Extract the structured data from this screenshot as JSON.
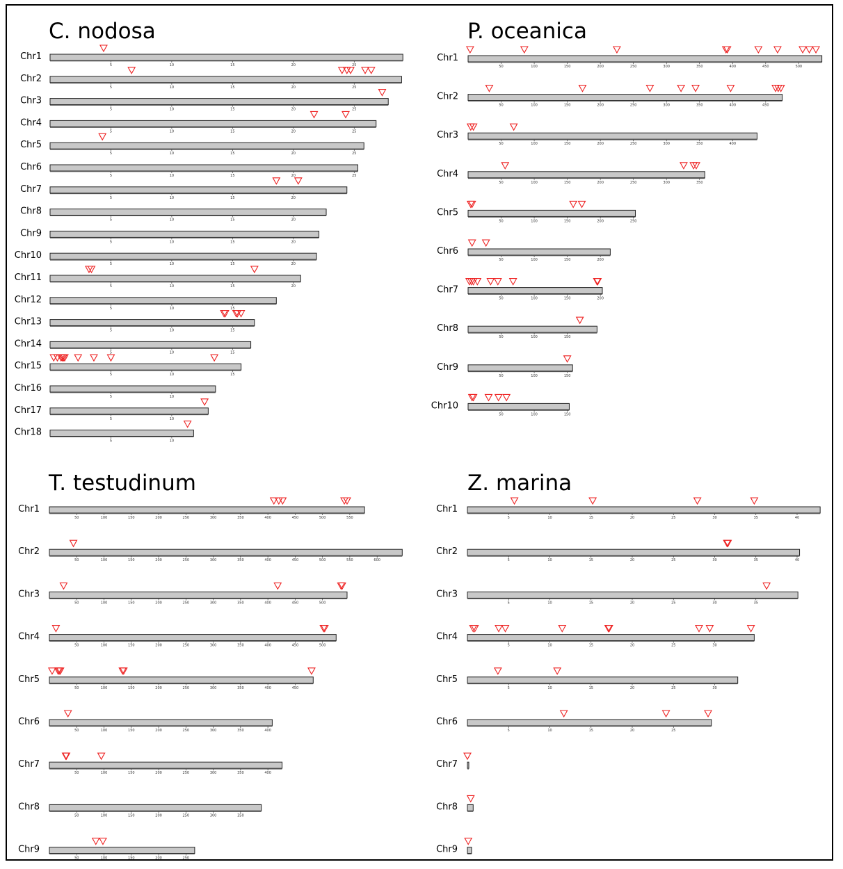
{
  "panels": [
    {
      "id": "c-nodosa",
      "title": "C. nodosa",
      "chromosomes": [
        {
          "name": "Chr1",
          "length": 29.0,
          "ticks": [
            5,
            10,
            15,
            20,
            25
          ],
          "markers": [
            4.4
          ]
        },
        {
          "name": "Chr2",
          "length": 28.9,
          "ticks": [
            5,
            10,
            15,
            20,
            25
          ],
          "markers": [
            6.7,
            24.0,
            24.4,
            24.7,
            25.9,
            26.4
          ]
        },
        {
          "name": "Chr3",
          "length": 27.8,
          "ticks": [
            5,
            10,
            15,
            20,
            25
          ],
          "markers": [
            27.3
          ]
        },
        {
          "name": "Chr4",
          "length": 26.8,
          "ticks": [
            5,
            10,
            15,
            20,
            25
          ],
          "markers": [
            21.7,
            24.3
          ]
        },
        {
          "name": "Chr5",
          "length": 25.8,
          "ticks": [
            5,
            10,
            15,
            20,
            25
          ],
          "markers": [
            4.3
          ]
        },
        {
          "name": "Chr6",
          "length": 25.3,
          "ticks": [
            5,
            10,
            15,
            20,
            25
          ],
          "markers": []
        },
        {
          "name": "Chr7",
          "length": 24.4,
          "ticks": [
            5,
            10,
            15,
            20
          ],
          "markers": [
            18.6,
            20.4
          ]
        },
        {
          "name": "Chr8",
          "length": 22.7,
          "ticks": [
            5,
            10,
            15,
            20
          ],
          "markers": []
        },
        {
          "name": "Chr9",
          "length": 22.1,
          "ticks": [
            5,
            10,
            15,
            20
          ],
          "markers": []
        },
        {
          "name": "Chr10",
          "length": 21.9,
          "ticks": [
            5,
            10,
            15,
            20
          ],
          "markers": []
        },
        {
          "name": "Chr11",
          "length": 20.6,
          "ticks": [
            5,
            10,
            15,
            20
          ],
          "markers": [
            3.2,
            3.4,
            16.8
          ]
        },
        {
          "name": "Chr12",
          "length": 18.6,
          "ticks": [
            5,
            10,
            15
          ],
          "markers": []
        },
        {
          "name": "Chr13",
          "length": 16.8,
          "ticks": [
            5,
            10,
            15
          ],
          "markers": [
            14.3,
            14.4,
            15.3,
            15.4,
            15.7
          ]
        },
        {
          "name": "Chr14",
          "length": 16.5,
          "ticks": [
            5,
            10,
            15
          ],
          "markers": []
        },
        {
          "name": "Chr15",
          "length": 15.7,
          "ticks": [
            5,
            10,
            15
          ],
          "markers": [
            0.3,
            0.6,
            0.9,
            1.0,
            1.1,
            1.2,
            2.3,
            3.6,
            5.0,
            13.5
          ]
        },
        {
          "name": "Chr16",
          "length": 13.6,
          "ticks": [
            5,
            10
          ],
          "markers": []
        },
        {
          "name": "Chr17",
          "length": 13.0,
          "ticks": [
            5,
            10
          ],
          "markers": [
            12.7
          ]
        },
        {
          "name": "Chr18",
          "length": 11.8,
          "ticks": [
            5,
            10
          ],
          "markers": [
            11.3
          ]
        }
      ]
    },
    {
      "id": "p-oceanica",
      "title": "P. oceanica",
      "chromosomes": [
        {
          "name": "Chr1",
          "length": 535,
          "ticks": [
            50,
            100,
            150,
            200,
            250,
            300,
            350,
            400,
            450,
            500
          ],
          "markers": [
            3,
            85,
            225,
            390,
            392,
            439,
            468,
            506,
            516,
            526
          ]
        },
        {
          "name": "Chr2",
          "length": 475,
          "ticks": [
            50,
            100,
            150,
            200,
            250,
            300,
            350,
            400,
            450
          ],
          "markers": [
            32,
            173,
            275,
            322,
            344,
            397,
            465,
            469,
            473
          ]
        },
        {
          "name": "Chr3",
          "length": 437,
          "ticks": [
            50,
            100,
            150,
            200,
            250,
            300,
            350,
            400
          ],
          "markers": [
            4,
            8,
            69
          ]
        },
        {
          "name": "Chr4",
          "length": 358,
          "ticks": [
            50,
            100,
            150,
            200,
            250,
            300,
            350
          ],
          "markers": [
            56,
            326,
            341,
            345
          ]
        },
        {
          "name": "Chr5",
          "length": 253,
          "ticks": [
            50,
            100,
            150,
            200,
            250
          ],
          "markers": [
            4,
            6,
            159,
            172
          ]
        },
        {
          "name": "Chr6",
          "length": 215,
          "ticks": [
            50,
            100,
            150,
            200
          ],
          "markers": [
            6,
            27
          ]
        },
        {
          "name": "Chr7",
          "length": 203,
          "ticks": [
            50,
            100,
            150,
            200
          ],
          "markers": [
            2,
            5,
            8,
            14,
            34,
            45,
            68,
            195,
            196
          ]
        },
        {
          "name": "Chr8",
          "length": 195,
          "ticks": [
            50,
            100,
            150
          ],
          "markers": [
            169
          ]
        },
        {
          "name": "Chr9",
          "length": 158,
          "ticks": [
            50,
            100,
            150
          ],
          "markers": [
            150
          ]
        },
        {
          "name": "Chr10",
          "length": 153,
          "ticks": [
            50,
            100,
            150
          ],
          "markers": [
            6,
            8,
            31,
            46,
            58
          ]
        }
      ]
    },
    {
      "id": "t-testudinum",
      "title": "T. testudinum",
      "chromosomes": [
        {
          "name": "Chr1",
          "length": 577,
          "ticks": [
            50,
            100,
            150,
            200,
            250,
            300,
            350,
            400,
            450,
            500,
            550
          ],
          "markers": [
            411,
            420,
            427,
            540,
            545
          ]
        },
        {
          "name": "Chr2",
          "length": 646,
          "ticks": [
            50,
            100,
            150,
            200,
            250,
            300,
            350,
            400,
            450,
            500,
            550,
            600
          ],
          "markers": [
            44
          ]
        },
        {
          "name": "Chr3",
          "length": 545,
          "ticks": [
            50,
            100,
            150,
            200,
            250,
            300,
            350,
            400,
            450,
            500
          ],
          "markers": [
            26,
            418,
            534,
            536
          ]
        },
        {
          "name": "Chr4",
          "length": 525,
          "ticks": [
            50,
            100,
            150,
            200,
            250,
            300,
            350,
            400,
            450,
            500
          ],
          "markers": [
            12,
            502,
            504
          ]
        },
        {
          "name": "Chr5",
          "length": 483,
          "ticks": [
            50,
            100,
            150,
            200,
            250,
            300,
            350,
            400,
            450
          ],
          "markers": [
            5,
            16,
            18,
            20,
            134,
            136,
            480
          ]
        },
        {
          "name": "Chr6",
          "length": 408,
          "ticks": [
            50,
            100,
            150,
            200,
            250,
            300,
            350,
            400
          ],
          "markers": [
            34
          ]
        },
        {
          "name": "Chr7",
          "length": 426,
          "ticks": [
            50,
            100,
            150,
            200,
            250,
            300,
            350,
            400
          ],
          "markers": [
            30,
            31,
            95
          ]
        },
        {
          "name": "Chr8",
          "length": 388,
          "ticks": [
            50,
            100,
            150,
            200,
            250,
            300,
            350
          ],
          "markers": []
        },
        {
          "name": "Chr9",
          "length": 266,
          "ticks": [
            50,
            100,
            150,
            200,
            250
          ],
          "markers": [
            85,
            98
          ]
        }
      ]
    },
    {
      "id": "z-marina",
      "title": "Z. marina",
      "chromosomes": [
        {
          "name": "Chr1",
          "length": 42.8,
          "ticks": [
            5,
            10,
            15,
            20,
            25,
            30,
            35,
            40
          ],
          "markers": [
            5.7,
            15.2,
            27.9,
            34.8
          ]
        },
        {
          "name": "Chr2",
          "length": 40.3,
          "ticks": [
            5,
            10,
            15,
            20,
            25,
            30,
            35,
            40
          ],
          "markers": [
            31.5,
            31.6
          ]
        },
        {
          "name": "Chr3",
          "length": 40.1,
          "ticks": [
            5,
            10,
            15,
            20,
            25,
            30,
            35
          ],
          "markers": [
            36.3
          ]
        },
        {
          "name": "Chr4",
          "length": 34.8,
          "ticks": [
            5,
            10,
            15,
            20,
            25,
            30
          ],
          "markers": [
            0.7,
            0.9,
            3.8,
            4.6,
            11.5,
            17.1,
            17.2,
            28.1,
            29.4,
            34.4
          ]
        },
        {
          "name": "Chr5",
          "length": 32.8,
          "ticks": [
            5,
            10,
            15,
            20,
            25,
            30
          ],
          "markers": [
            3.7,
            10.9
          ]
        },
        {
          "name": "Chr6",
          "length": 29.6,
          "ticks": [
            5,
            10,
            15,
            20,
            25
          ],
          "markers": [
            11.7,
            24.1,
            29.2
          ]
        },
        {
          "name": "Chr7",
          "length": 0.1,
          "ticks": [],
          "markers": [
            0.0
          ]
        },
        {
          "name": "Chr8",
          "length": 0.7,
          "ticks": [],
          "markers": [
            0.4
          ]
        },
        {
          "name": "Chr9",
          "length": 0.5,
          "ticks": [],
          "markers": [
            0.1
          ]
        }
      ]
    }
  ],
  "colors": {
    "bar_fill": "#c8c8c8",
    "bar_stroke": "#222222",
    "marker": "#ee2222",
    "text": "#000000"
  }
}
